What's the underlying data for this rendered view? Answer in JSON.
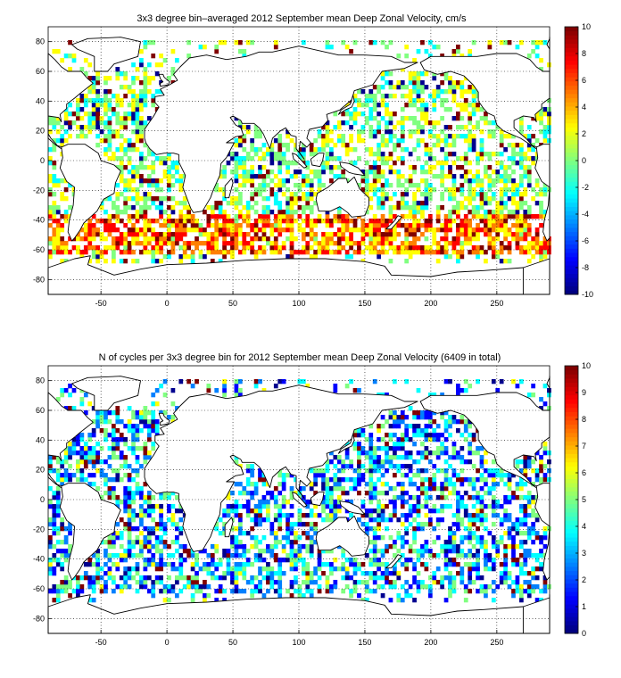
{
  "colors": {
    "colormap": [
      "#00008f",
      "#0000ff",
      "#0080ff",
      "#00ffff",
      "#80ff80",
      "#ffff00",
      "#ff8000",
      "#ff0000",
      "#800000"
    ],
    "coast": "#000000",
    "grid": "#000000"
  },
  "chart_data": [
    {
      "type": "heatmap",
      "title": "3x3 degree bin–averaged 2012 September mean Deep Zonal Velocity, cm/s",
      "xlabel": "",
      "ylabel": "",
      "xlim": [
        -90,
        290
      ],
      "ylim": [
        -90,
        90
      ],
      "x_ticks": [
        -50,
        0,
        50,
        100,
        150,
        200,
        250
      ],
      "y_ticks": [
        80,
        60,
        40,
        20,
        0,
        -20,
        -40,
        -60,
        -80
      ],
      "grid": true,
      "bin_size_deg": 3,
      "colorbar": {
        "min": -10,
        "max": 10,
        "ticks": [
          10,
          8,
          6,
          4,
          2,
          0,
          -2,
          -4,
          -6,
          -8,
          -10
        ],
        "colormap": "jet",
        "placement": "right"
      }
    },
    {
      "type": "heatmap",
      "title": "N of cycles per 3x3 degree bin for 2012 September mean Deep Zonal Velocity (6409 in total)",
      "xlabel": "",
      "ylabel": "",
      "xlim": [
        -90,
        290
      ],
      "ylim": [
        -90,
        90
      ],
      "x_ticks": [
        -50,
        0,
        50,
        100,
        150,
        200,
        250
      ],
      "y_ticks": [
        80,
        60,
        40,
        20,
        0,
        -20,
        -40,
        -60,
        -80
      ],
      "grid": true,
      "bin_size_deg": 3,
      "total_cycles": 6409,
      "colorbar": {
        "min": 0,
        "max": 10,
        "ticks": [
          10,
          9,
          8,
          7,
          6,
          5,
          4,
          3,
          2,
          1,
          0
        ],
        "colormap": "jet",
        "placement": "right"
      }
    }
  ]
}
